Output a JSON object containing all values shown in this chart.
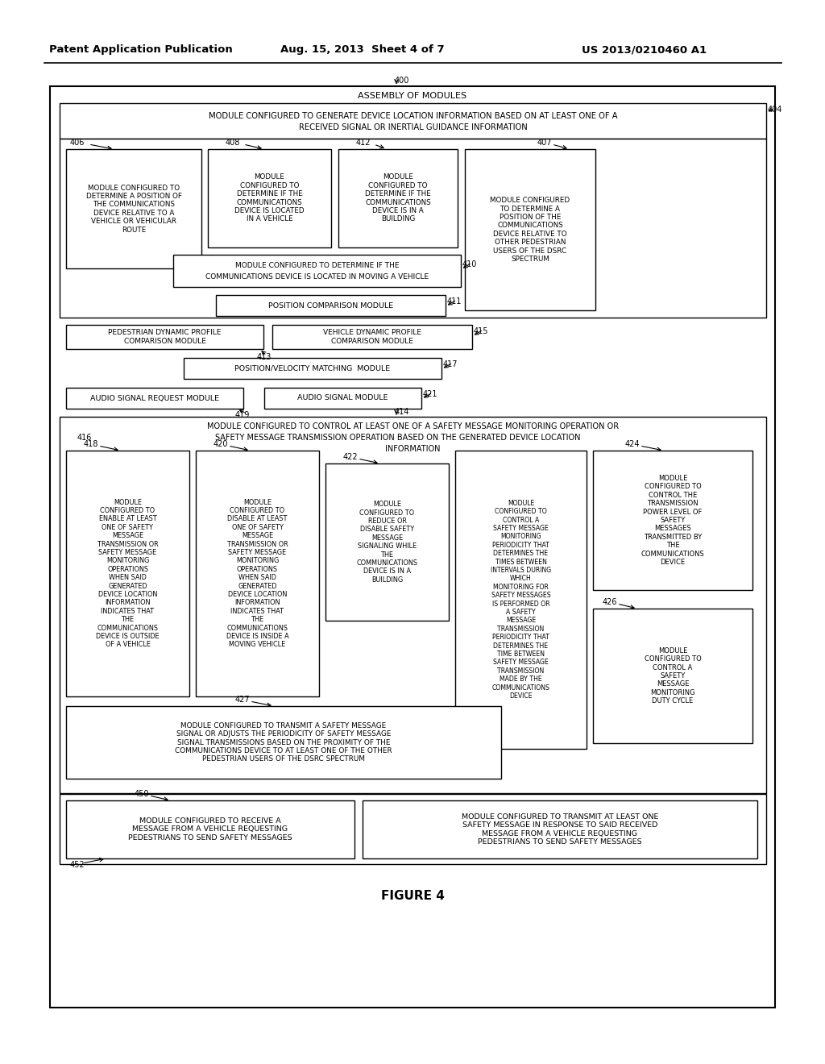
{
  "header_left": "Patent Application Publication",
  "header_mid": "Aug. 15, 2013  Sheet 4 of 7",
  "header_right": "US 2013/0210460 A1",
  "figure_label": "FIGURE 4",
  "bg_color": "#ffffff",
  "text_color": "#000000",
  "box_edge_color": "#000000",
  "box_fill": "#ffffff"
}
